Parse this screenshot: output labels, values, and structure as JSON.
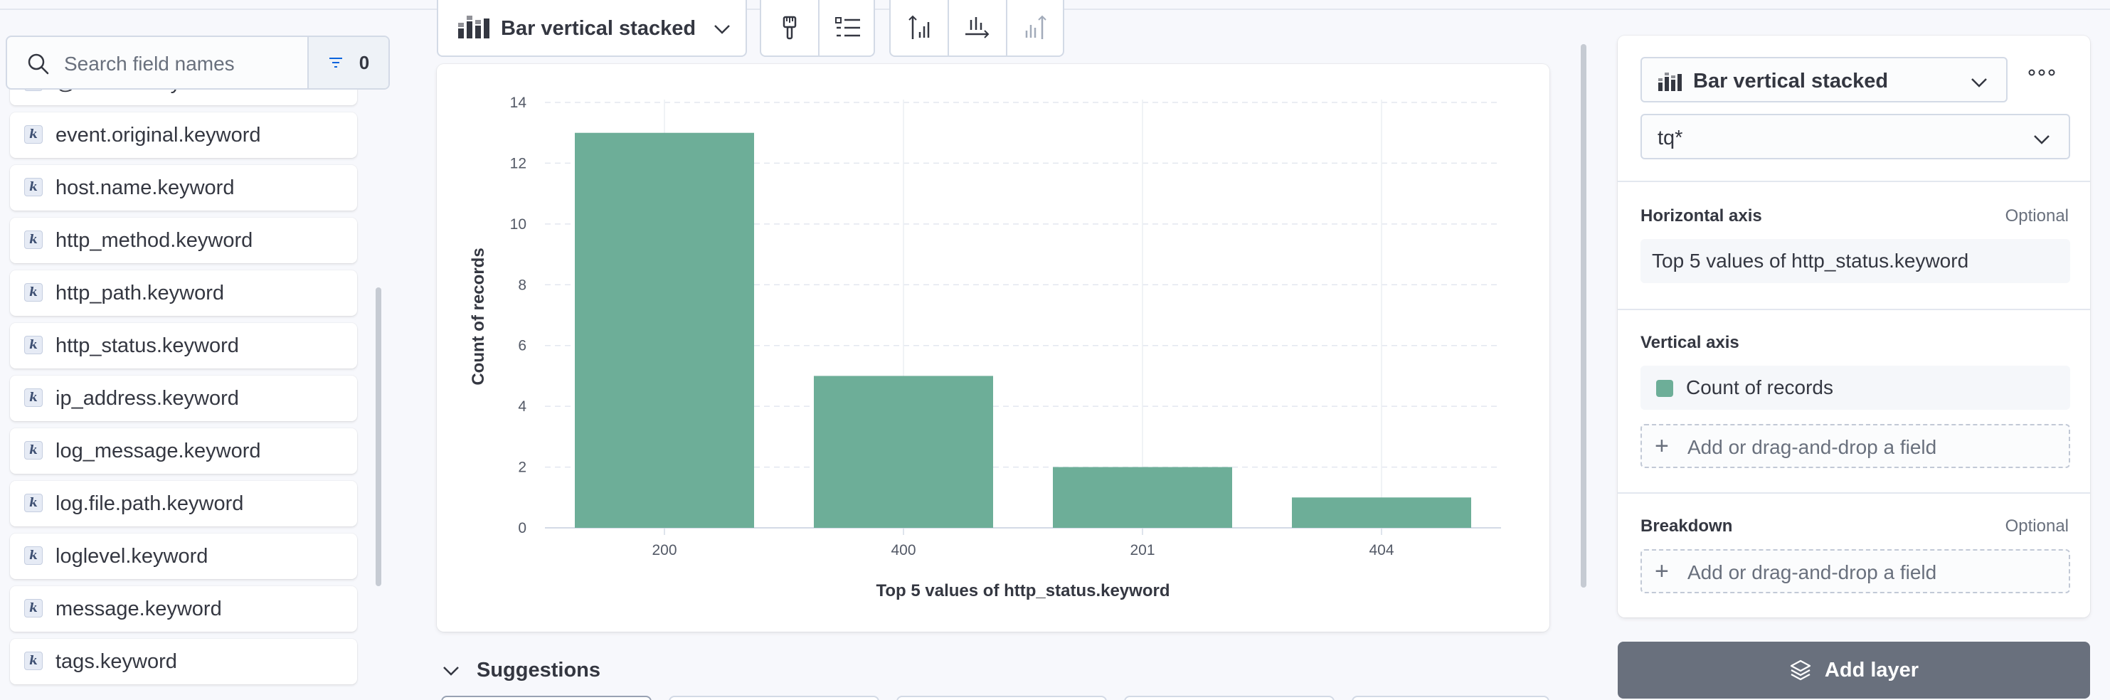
{
  "sidebar": {
    "search_placeholder": "Search field names",
    "filter_count": "0",
    "fields": [
      "@version.keyword",
      "event.original.keyword",
      "host.name.keyword",
      "http_method.keyword",
      "http_path.keyword",
      "http_status.keyword",
      "ip_address.keyword",
      "log_message.keyword",
      "log.file.path.keyword",
      "loglevel.keyword",
      "message.keyword",
      "tags.keyword"
    ],
    "field_type_glyph": "k"
  },
  "toolbar": {
    "chart_type_label": "Bar vertical stacked",
    "buttons": [
      "paintbrush-icon",
      "legend-icon",
      "left-axis-icon",
      "bottom-axis-icon",
      "right-axis-icon"
    ]
  },
  "chart_data": {
    "type": "bar",
    "categories": [
      "200",
      "400",
      "201",
      "404"
    ],
    "values": [
      13,
      5,
      2,
      1
    ],
    "xlabel": "Top 5 values of http_status.keyword",
    "ylabel": "Count of records",
    "ylim": [
      0,
      14
    ],
    "yticks": [
      0,
      2,
      4,
      6,
      8,
      10,
      12,
      14
    ],
    "grid": true,
    "bar_color": "#6dae98"
  },
  "suggestions": {
    "label": "Suggestions"
  },
  "config": {
    "chart_type_label": "Bar vertical stacked",
    "data_view": "tq*",
    "horizontal_axis": {
      "title": "Horizontal axis",
      "optional": "Optional",
      "value": "Top 5 values of http_status.keyword"
    },
    "vertical_axis": {
      "title": "Vertical axis",
      "value": "Count of records",
      "swatch_color": "#6dae98",
      "add_field": "Add or drag-and-drop a field"
    },
    "breakdown": {
      "title": "Breakdown",
      "optional": "Optional",
      "add_field": "Add or drag-and-drop a field"
    }
  },
  "add_layer_label": "Add layer"
}
